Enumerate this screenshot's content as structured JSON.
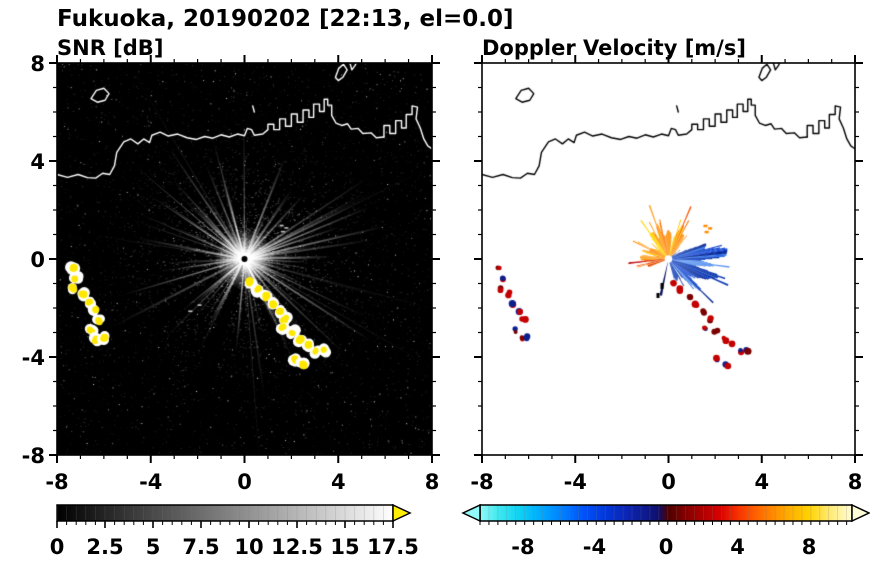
{
  "title": "Fukuoka, 20190202 [22:13, el=0.0]",
  "panels": {
    "snr": {
      "title": "SNR [dB]"
    },
    "vel": {
      "title": "Doppler Velocity [m/s]"
    }
  },
  "axes": {
    "xlim": [
      -8,
      8
    ],
    "ylim": [
      -8,
      8
    ],
    "x_tick_labels": [
      "-8",
      "-4",
      "0",
      "4",
      "8"
    ],
    "y_tick_labels": [
      "8",
      "4",
      "0",
      "-4",
      "-8"
    ],
    "major_tick_values": [
      -8,
      -4,
      0,
      4,
      8
    ],
    "minor_tick_step": 1
  },
  "colorbars": {
    "snr": {
      "min": 0,
      "max": 17.5,
      "tick_step": 0.5,
      "labels": [
        "0",
        "2.5",
        "5",
        "7.5",
        "10",
        "12.5",
        "15",
        "17.5"
      ],
      "label_values": [
        0,
        2.5,
        5,
        7.5,
        10,
        12.5,
        15,
        17.5
      ],
      "stops": [
        [
          0,
          "#000000"
        ],
        [
          17.5,
          "#ffffff"
        ]
      ],
      "over_arrow_color": "#ffee00"
    },
    "vel": {
      "min": -10.4,
      "max": 10.4,
      "tick_step": 0.5,
      "labels": [
        "-8",
        "-4",
        "0",
        "4",
        "8"
      ],
      "label_values": [
        -8,
        -4,
        0,
        4,
        8
      ],
      "stops": [
        [
          -10.4,
          "#93f8f8"
        ],
        [
          -9.4,
          "#3fe9f0"
        ],
        [
          -8.2,
          "#0fd2f4"
        ],
        [
          -7,
          "#00aaff"
        ],
        [
          -5.8,
          "#0080ff"
        ],
        [
          -4.6,
          "#0052f8"
        ],
        [
          -3.4,
          "#0038dc"
        ],
        [
          -2.2,
          "#0c24b4"
        ],
        [
          -1.2,
          "#0d1a90"
        ],
        [
          -0.4,
          "#100e6a"
        ],
        [
          0.1,
          "#4c0000"
        ],
        [
          1,
          "#800000"
        ],
        [
          2,
          "#ad0000"
        ],
        [
          3,
          "#d80000"
        ],
        [
          4,
          "#f63000"
        ],
        [
          5,
          "#ff6000"
        ],
        [
          6,
          "#ff8c00"
        ],
        [
          7,
          "#ffb200"
        ],
        [
          8,
          "#ffd200"
        ],
        [
          9,
          "#ffe766"
        ],
        [
          9.8,
          "#fff4a8"
        ],
        [
          10.4,
          "#fffcd8"
        ]
      ],
      "under_arrow_color": "#93f8f8",
      "over_arrow_color": "#fffcd8"
    }
  },
  "coastline": {
    "color_snr": "#ffffff",
    "color_vel": "#000000",
    "main": [
      [
        -8,
        3.45
      ],
      [
        -7.55,
        3.33
      ],
      [
        -7.1,
        3.45
      ],
      [
        -6.7,
        3.32
      ],
      [
        -6.35,
        3.3
      ],
      [
        -6.05,
        3.5
      ],
      [
        -5.75,
        3.45
      ],
      [
        -5.55,
        3.8
      ],
      [
        -5.45,
        4.35
      ],
      [
        -5.15,
        4.78
      ],
      [
        -4.85,
        4.9
      ],
      [
        -4.55,
        4.7
      ],
      [
        -4.3,
        4.9
      ],
      [
        -4.05,
        4.75
      ],
      [
        -3.95,
        5.05
      ],
      [
        -3.6,
        5.18
      ],
      [
        -3.25,
        5.02
      ],
      [
        -2.85,
        5.1
      ],
      [
        -2.45,
        4.95
      ],
      [
        -2.05,
        4.88
      ],
      [
        -1.7,
        5.0
      ],
      [
        -1.35,
        4.93
      ],
      [
        -1.0,
        5.07
      ],
      [
        -0.65,
        4.98
      ],
      [
        -0.3,
        5.1
      ],
      [
        0.0,
        5.03
      ],
      [
        0.12,
        5.33
      ],
      [
        0.3,
        5.28
      ],
      [
        0.42,
        5.05
      ],
      [
        0.78,
        5.1
      ],
      [
        1.0,
        5.28
      ],
      [
        1.0,
        5.5
      ],
      [
        1.25,
        5.5
      ],
      [
        1.25,
        5.28
      ],
      [
        1.5,
        5.28
      ],
      [
        1.5,
        5.72
      ],
      [
        1.75,
        5.72
      ],
      [
        1.75,
        5.42
      ],
      [
        2.0,
        5.42
      ],
      [
        2.0,
        5.92
      ],
      [
        2.25,
        5.92
      ],
      [
        2.25,
        5.58
      ],
      [
        2.5,
        5.58
      ],
      [
        2.5,
        6.08
      ],
      [
        2.75,
        6.08
      ],
      [
        2.75,
        5.78
      ],
      [
        2.95,
        5.78
      ],
      [
        2.95,
        6.32
      ],
      [
        3.2,
        6.32
      ],
      [
        3.2,
        6.02
      ],
      [
        3.4,
        6.02
      ],
      [
        3.4,
        6.52
      ],
      [
        3.55,
        6.52
      ],
      [
        3.55,
        6.28
      ],
      [
        3.72,
        6.28
      ],
      [
        3.72,
        5.86
      ],
      [
        3.9,
        5.55
      ],
      [
        4.15,
        5.45
      ],
      [
        4.4,
        5.52
      ],
      [
        4.55,
        5.3
      ],
      [
        4.85,
        5.33
      ],
      [
        5.05,
        5.12
      ],
      [
        5.4,
        5.15
      ],
      [
        5.62,
        4.95
      ],
      [
        5.95,
        4.98
      ]
    ],
    "jetty_east": [
      [
        5.95,
        4.98
      ],
      [
        5.95,
        5.45
      ],
      [
        6.2,
        5.45
      ],
      [
        6.2,
        5.12
      ],
      [
        6.45,
        5.12
      ],
      [
        6.45,
        5.65
      ],
      [
        6.7,
        5.65
      ],
      [
        6.7,
        5.35
      ],
      [
        6.9,
        5.35
      ],
      [
        6.9,
        5.9
      ],
      [
        7.15,
        5.9
      ],
      [
        7.15,
        6.25
      ],
      [
        7.38,
        6.2
      ],
      [
        7.32,
        5.72
      ],
      [
        7.5,
        5.35
      ],
      [
        7.65,
        4.9
      ],
      [
        7.82,
        4.62
      ],
      [
        8,
        4.5
      ]
    ],
    "island_nw": [
      [
        -6.55,
        6.55
      ],
      [
        -6.32,
        6.88
      ],
      [
        -6.0,
        6.97
      ],
      [
        -5.78,
        6.75
      ],
      [
        -5.95,
        6.48
      ],
      [
        -6.28,
        6.4
      ],
      [
        -6.55,
        6.55
      ]
    ],
    "islet_top": [
      [
        3.88,
        7.42
      ],
      [
        4.02,
        7.78
      ],
      [
        4.22,
        7.95
      ],
      [
        4.38,
        7.72
      ],
      [
        4.2,
        7.42
      ],
      [
        4.0,
        7.28
      ],
      [
        3.88,
        7.42
      ]
    ],
    "top_edge_piece": [
      [
        4.5,
        8.0
      ],
      [
        4.58,
        7.72
      ],
      [
        4.72,
        7.9
      ],
      [
        4.76,
        8.0
      ]
    ],
    "small_dash": [
      [
        0.35,
        6.25
      ],
      [
        0.42,
        6.0
      ]
    ]
  },
  "chart_data": [
    {
      "type": "heatmap",
      "title": "SNR [dB]",
      "units": "dB",
      "xlim": [
        -8,
        8
      ],
      "ylim": [
        -8,
        8
      ],
      "xticks": [
        -8,
        -4,
        0,
        4,
        8
      ],
      "yticks": [
        -8,
        -4,
        0,
        4,
        8
      ],
      "colorbar_range": [
        0,
        17.5
      ],
      "colormap": "grayscale with yellow over-range",
      "background": "#000000",
      "features": {
        "radar_center_xy": [
          0,
          0
        ],
        "radial_streaks": {
          "count": 150,
          "max_range_units": 4.5,
          "description": "white-gray noise spokes radiating from radar at origin"
        },
        "center_glow_radius_units": 1.1,
        "ship_clutter_yellow": {
          "approx_snr_db": 17.5,
          "west_arc": [
            [
              -7.3,
              -0.35
            ],
            [
              -7.18,
              -0.8
            ],
            [
              -7.28,
              -1.22
            ],
            [
              -6.88,
              -1.42
            ],
            [
              -6.62,
              -1.78
            ],
            [
              -6.38,
              -2.12
            ],
            [
              -6.22,
              -2.52
            ],
            [
              -6.55,
              -2.92
            ],
            [
              -6.32,
              -3.28
            ],
            [
              -6.02,
              -3.22
            ]
          ],
          "southeast_chain": [
            [
              0.25,
              -0.95
            ],
            [
              0.55,
              -1.25
            ],
            [
              0.9,
              -1.55
            ],
            [
              1.2,
              -1.85
            ],
            [
              1.5,
              -2.15
            ],
            [
              1.75,
              -2.45
            ],
            [
              1.62,
              -2.82
            ],
            [
              2.05,
              -3.0
            ],
            [
              2.38,
              -3.28
            ],
            [
              2.7,
              -3.52
            ],
            [
              3.05,
              -3.78
            ],
            [
              3.4,
              -3.72
            ],
            [
              2.12,
              -4.12
            ],
            [
              2.48,
              -4.32
            ]
          ]
        },
        "isolated_echo_dashes": [
          [
            1.5,
            1.4
          ],
          [
            1.7,
            1.3
          ],
          [
            1.55,
            1.15
          ],
          [
            -2.4,
            -2.1
          ],
          [
            -2.0,
            -1.85
          ]
        ]
      }
    },
    {
      "type": "heatmap",
      "title": "Doppler Velocity [m/s]",
      "units": "m/s",
      "xlim": [
        -8,
        8
      ],
      "ylim": [
        -8,
        8
      ],
      "xticks": [
        -8,
        -4,
        0,
        4,
        8
      ],
      "yticks": [
        -8,
        -4,
        0,
        4,
        8
      ],
      "colorbar_range": [
        -10.4,
        10.4
      ],
      "colormap": "cyan-blue-navy-darkred-red-orange-yellow",
      "background": "#ffffff",
      "features": {
        "radar_center_xy": [
          0,
          0
        ],
        "fan_sectors": [
          {
            "sign": "positive (orange-yellow, NW of radar)",
            "angle_deg": [
              42,
              202
            ],
            "max_range_units": 2.45,
            "palette": [
              "#ff8c00",
              "#ffa024",
              "#ff7300",
              "#ffc800",
              "#ffd700",
              "#ff5400"
            ],
            "edge_reds": [
              "#d40000",
              "#b00000",
              "#ff4500"
            ],
            "approx_velocity_mps": [
              3,
              8
            ]
          },
          {
            "sign": "negative (blue, E-SE of radar)",
            "angle_deg": [
              -75,
              38
            ],
            "max_range_units": 3.3,
            "palette": [
              "#1d4fd7",
              "#123cb4",
              "#0a2a96",
              "#2f6fe4",
              "#5a93ef",
              "#8fb8f7"
            ],
            "inner_dark": "#0b1560",
            "approx_velocity_mps": [
              -8,
              -2
            ]
          }
        ],
        "south_spike": {
          "angle_deg": 258,
          "range_units": 1.6,
          "color": "#0b1560"
        },
        "ship_echo_speck_colors": [
          "#c40000",
          "#7a0000",
          "#0b1f8e"
        ],
        "orange_specks_ne": [
          [
            1.5,
            1.4
          ],
          [
            1.7,
            1.3
          ],
          [
            1.55,
            1.15
          ]
        ]
      }
    }
  ]
}
